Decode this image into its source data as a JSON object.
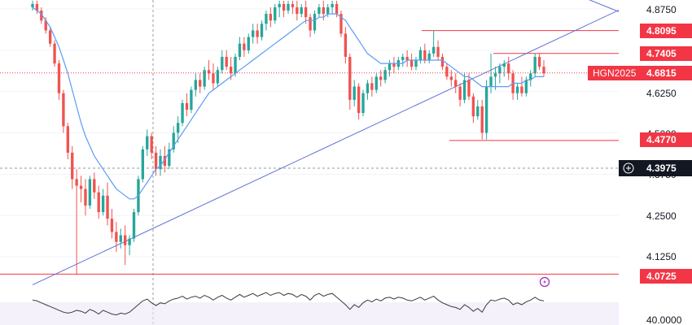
{
  "chart_data": {
    "type": "candlestick",
    "symbol": "HGN2025",
    "current_price": "4.6815",
    "cursor_price": "4.3975",
    "ylim": [
      4.07,
      4.9
    ],
    "y_ticks": [
      "4.8750",
      "4.6250",
      "4.5000",
      "4.3750",
      "4.2500",
      "4.1250"
    ],
    "level_tags": [
      "4.8095",
      "4.7405",
      "4.4770",
      "4.0725"
    ],
    "rsi_tick": "40.0000",
    "horizontal_levels": [
      4.8095,
      4.7405,
      4.477,
      4.0725
    ],
    "trendlines": [
      {
        "from": [
          0,
          4.04
        ],
        "to": [
          152,
          4.99
        ]
      },
      {
        "from": [
          110,
          4.99
        ],
        "to": [
          166,
          4.69
        ]
      }
    ],
    "candles": [
      [
        4.88,
        4.9,
        4.87,
        4.89
      ],
      [
        4.89,
        4.9,
        4.86,
        4.87
      ],
      [
        4.87,
        4.88,
        4.83,
        4.84
      ],
      [
        4.84,
        4.85,
        4.8,
        4.81
      ],
      [
        4.81,
        4.82,
        4.76,
        4.77
      ],
      [
        4.77,
        4.78,
        4.7,
        4.71
      ],
      [
        4.71,
        4.72,
        4.6,
        4.62
      ],
      [
        4.62,
        4.63,
        4.5,
        4.52
      ],
      [
        4.52,
        4.53,
        4.42,
        4.44
      ],
      [
        4.44,
        4.46,
        4.33,
        4.36
      ],
      [
        4.36,
        4.39,
        4.07,
        4.34
      ],
      [
        4.34,
        4.37,
        4.29,
        4.33
      ],
      [
        4.33,
        4.36,
        4.25,
        4.28
      ],
      [
        4.28,
        4.37,
        4.27,
        4.36
      ],
      [
        4.36,
        4.38,
        4.3,
        4.32
      ],
      [
        4.32,
        4.34,
        4.24,
        4.26
      ],
      [
        4.26,
        4.33,
        4.25,
        4.31
      ],
      [
        4.31,
        4.35,
        4.22,
        4.24
      ],
      [
        4.24,
        4.27,
        4.18,
        4.2
      ],
      [
        4.2,
        4.23,
        4.14,
        4.17
      ],
      [
        4.17,
        4.21,
        4.15,
        4.19
      ],
      [
        4.19,
        4.22,
        4.1,
        4.16
      ],
      [
        4.16,
        4.19,
        4.13,
        4.18
      ],
      [
        4.18,
        4.27,
        4.17,
        4.26
      ],
      [
        4.26,
        4.37,
        4.25,
        4.36
      ],
      [
        4.36,
        4.46,
        4.35,
        4.45
      ],
      [
        4.45,
        4.51,
        4.43,
        4.49
      ],
      [
        4.49,
        4.5,
        4.42,
        4.44
      ],
      [
        4.44,
        4.46,
        4.37,
        4.39
      ],
      [
        4.39,
        4.45,
        4.37,
        4.43
      ],
      [
        4.43,
        4.46,
        4.38,
        4.4
      ],
      [
        4.4,
        4.47,
        4.39,
        4.45
      ],
      [
        4.45,
        4.52,
        4.44,
        4.5
      ],
      [
        4.5,
        4.55,
        4.47,
        4.53
      ],
      [
        4.53,
        4.6,
        4.52,
        4.59
      ],
      [
        4.59,
        4.62,
        4.55,
        4.57
      ],
      [
        4.57,
        4.64,
        4.56,
        4.63
      ],
      [
        4.63,
        4.68,
        4.61,
        4.66
      ],
      [
        4.66,
        4.68,
        4.62,
        4.64
      ],
      [
        4.64,
        4.7,
        4.63,
        4.69
      ],
      [
        4.69,
        4.72,
        4.66,
        4.68
      ],
      [
        4.68,
        4.71,
        4.63,
        4.65
      ],
      [
        4.65,
        4.7,
        4.64,
        4.69
      ],
      [
        4.69,
        4.75,
        4.68,
        4.73
      ],
      [
        4.73,
        4.75,
        4.69,
        4.7
      ],
      [
        4.7,
        4.73,
        4.66,
        4.68
      ],
      [
        4.68,
        4.74,
        4.67,
        4.73
      ],
      [
        4.73,
        4.79,
        4.72,
        4.77
      ],
      [
        4.77,
        4.79,
        4.73,
        4.75
      ],
      [
        4.75,
        4.8,
        4.74,
        4.79
      ],
      [
        4.79,
        4.83,
        4.77,
        4.81
      ],
      [
        4.81,
        4.83,
        4.77,
        4.79
      ],
      [
        4.79,
        4.84,
        4.78,
        4.83
      ],
      [
        4.83,
        4.87,
        4.81,
        4.86
      ],
      [
        4.86,
        4.88,
        4.82,
        4.84
      ],
      [
        4.84,
        4.89,
        4.83,
        4.88
      ],
      [
        4.88,
        4.9,
        4.85,
        4.89
      ],
      [
        4.89,
        4.9,
        4.85,
        4.87
      ],
      [
        4.87,
        4.9,
        4.86,
        4.89
      ],
      [
        4.89,
        4.9,
        4.86,
        4.88
      ],
      [
        4.88,
        4.9,
        4.84,
        4.86
      ],
      [
        4.86,
        4.89,
        4.85,
        4.88
      ],
      [
        4.88,
        4.9,
        4.83,
        4.85
      ],
      [
        4.85,
        4.86,
        4.79,
        4.81
      ],
      [
        4.81,
        4.87,
        4.8,
        4.86
      ],
      [
        4.86,
        4.89,
        4.85,
        4.88
      ],
      [
        4.88,
        4.9,
        4.84,
        4.86
      ],
      [
        4.86,
        4.89,
        4.85,
        4.88
      ],
      [
        4.88,
        4.9,
        4.86,
        4.89
      ],
      [
        4.89,
        4.9,
        4.85,
        4.86
      ],
      [
        4.86,
        4.87,
        4.79,
        4.8
      ],
      [
        4.8,
        4.82,
        4.71,
        4.73
      ],
      [
        4.73,
        4.74,
        4.57,
        4.6
      ],
      [
        4.6,
        4.66,
        4.58,
        4.64
      ],
      [
        4.64,
        4.65,
        4.54,
        4.56
      ],
      [
        4.56,
        4.63,
        4.55,
        4.62
      ],
      [
        4.62,
        4.66,
        4.6,
        4.65
      ],
      [
        4.65,
        4.67,
        4.61,
        4.63
      ],
      [
        4.63,
        4.68,
        4.62,
        4.67
      ],
      [
        4.67,
        4.69,
        4.64,
        4.66
      ],
      [
        4.66,
        4.7,
        4.65,
        4.69
      ],
      [
        4.69,
        4.72,
        4.67,
        4.71
      ],
      [
        4.71,
        4.73,
        4.68,
        4.7
      ],
      [
        4.7,
        4.73,
        4.69,
        4.72
      ],
      [
        4.72,
        4.74,
        4.7,
        4.73
      ],
      [
        4.73,
        4.75,
        4.7,
        4.72
      ],
      [
        4.72,
        4.74,
        4.69,
        4.7
      ],
      [
        4.7,
        4.73,
        4.69,
        4.72
      ],
      [
        4.72,
        4.76,
        4.71,
        4.75
      ],
      [
        4.75,
        4.77,
        4.71,
        4.72
      ],
      [
        4.72,
        4.75,
        4.71,
        4.74
      ],
      [
        4.74,
        4.81,
        4.73,
        4.76
      ],
      [
        4.76,
        4.78,
        4.72,
        4.73
      ],
      [
        4.73,
        4.74,
        4.69,
        4.7
      ],
      [
        4.7,
        4.71,
        4.66,
        4.67
      ],
      [
        4.67,
        4.69,
        4.64,
        4.66
      ],
      [
        4.66,
        4.68,
        4.62,
        4.64
      ],
      [
        4.64,
        4.65,
        4.58,
        4.6
      ],
      [
        4.6,
        4.68,
        4.59,
        4.66
      ],
      [
        4.66,
        4.68,
        4.6,
        4.61
      ],
      [
        4.61,
        4.62,
        4.53,
        4.55
      ],
      [
        4.55,
        4.6,
        4.54,
        4.58
      ],
      [
        4.58,
        4.6,
        4.48,
        4.5
      ],
      [
        4.5,
        4.66,
        4.48,
        4.64
      ],
      [
        4.64,
        4.74,
        4.62,
        4.67
      ],
      [
        4.67,
        4.7,
        4.63,
        4.68
      ],
      [
        4.68,
        4.71,
        4.65,
        4.7
      ],
      [
        4.7,
        4.72,
        4.67,
        4.71
      ],
      [
        4.71,
        4.73,
        4.66,
        4.68
      ],
      [
        4.68,
        4.69,
        4.6,
        4.62
      ],
      [
        4.62,
        4.65,
        4.6,
        4.64
      ],
      [
        4.64,
        4.67,
        4.61,
        4.62
      ],
      [
        4.62,
        4.67,
        4.61,
        4.66
      ],
      [
        4.66,
        4.69,
        4.64,
        4.68
      ],
      [
        4.68,
        4.74,
        4.67,
        4.73
      ],
      [
        4.73,
        4.74,
        4.69,
        4.7
      ],
      [
        4.7,
        4.72,
        4.67,
        4.68
      ]
    ],
    "moving_average": [
      4.88,
      4.87,
      4.86,
      4.84,
      4.82,
      4.79,
      4.76,
      4.72,
      4.68,
      4.63,
      4.58,
      4.53,
      4.49,
      4.46,
      4.43,
      4.41,
      4.39,
      4.37,
      4.35,
      4.33,
      4.32,
      4.31,
      4.3,
      4.3,
      4.31,
      4.33,
      4.35,
      4.37,
      4.39,
      4.4,
      4.42,
      4.44,
      4.46,
      4.48,
      4.5,
      4.52,
      4.54,
      4.56,
      4.58,
      4.6,
      4.62,
      4.63,
      4.64,
      4.65,
      4.66,
      4.67,
      4.68,
      4.69,
      4.7,
      4.71,
      4.72,
      4.73,
      4.74,
      4.75,
      4.76,
      4.77,
      4.78,
      4.79,
      4.8,
      4.81,
      4.82,
      4.83,
      4.84,
      4.84,
      4.84,
      4.85,
      4.85,
      4.86,
      4.86,
      4.86,
      4.85,
      4.84,
      4.82,
      4.8,
      4.78,
      4.76,
      4.74,
      4.73,
      4.72,
      4.71,
      4.71,
      4.71,
      4.71,
      4.71,
      4.71,
      4.72,
      4.72,
      4.72,
      4.72,
      4.72,
      4.72,
      4.72,
      4.72,
      4.72,
      4.71,
      4.7,
      4.69,
      4.68,
      4.67,
      4.67,
      4.66,
      4.65,
      4.64,
      4.64,
      4.64,
      4.64,
      4.64,
      4.64,
      4.64,
      4.65,
      4.65,
      4.65,
      4.66,
      4.66,
      4.67,
      4.67,
      4.67
    ],
    "rsi": [
      55,
      54,
      52,
      50,
      48,
      46,
      44,
      42,
      41,
      42,
      44,
      43,
      41,
      45,
      43,
      40,
      44,
      42,
      40,
      39,
      41,
      40,
      42,
      46,
      50,
      54,
      56,
      52,
      49,
      52,
      51,
      54,
      56,
      57,
      59,
      56,
      58,
      59,
      57,
      60,
      58,
      55,
      58,
      60,
      57,
      55,
      58,
      61,
      58,
      60,
      62,
      59,
      61,
      63,
      60,
      62,
      63,
      60,
      62,
      61,
      58,
      61,
      59,
      55,
      60,
      62,
      59,
      61,
      62,
      58,
      54,
      50,
      45,
      50,
      47,
      52,
      55,
      53,
      56,
      54,
      57,
      58,
      56,
      58,
      57,
      55,
      54,
      56,
      58,
      55,
      57,
      59,
      55,
      52,
      50,
      48,
      47,
      45,
      50,
      47,
      43,
      46,
      42,
      50,
      55,
      54,
      56,
      57,
      55,
      50,
      52,
      50,
      53,
      55,
      58,
      55,
      54
    ]
  }
}
